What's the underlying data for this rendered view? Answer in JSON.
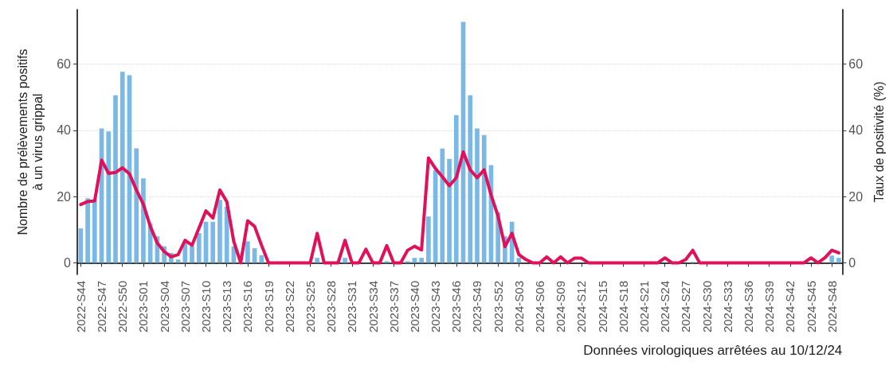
{
  "chart_data": {
    "type": "bar",
    "xlabel": "Données virologiques arrêtées au 10/12/24",
    "ylabel": "Nombre de prélèvements positifs\nà un virus grippal",
    "y2label": "Taux de positivité (%)",
    "categories": [
      "2022-S44",
      null,
      null,
      "2022-S47",
      null,
      null,
      "2022-S50",
      null,
      null,
      "2023-S01",
      null,
      null,
      "2023-S04",
      null,
      null,
      "2023-S07",
      null,
      null,
      "2023-S10",
      null,
      null,
      "2023-S13",
      null,
      null,
      "2023-S16",
      null,
      null,
      "2023-S19",
      null,
      null,
      "2023-S22",
      null,
      null,
      "2023-S25",
      null,
      null,
      "2023-S28",
      null,
      null,
      "2023-S31",
      null,
      null,
      "2023-S34",
      null,
      null,
      "2023-S37",
      null,
      null,
      "2023-S40",
      null,
      null,
      "2023-S43",
      null,
      null,
      "2023-S46",
      null,
      null,
      "2023-S49",
      null,
      null,
      "2023-S52",
      null,
      null,
      "2024-S03",
      null,
      null,
      "2024-S06",
      null,
      null,
      "2024-S09",
      null,
      null,
      "2024-S12",
      null,
      null,
      "2024-S15",
      null,
      null,
      "2024-S18",
      null,
      null,
      "2024-S21",
      null,
      null,
      "2024-S24",
      null,
      null,
      "2024-S27",
      null,
      null,
      "2024-S30",
      null,
      null,
      "2024-S33",
      null,
      null,
      "2024-S36",
      null,
      null,
      "2024-S39",
      null,
      null,
      "2024-S42",
      null,
      null,
      "2024-S45",
      null,
      null,
      "2024-S48",
      null
    ],
    "series": [
      {
        "color": "#7ab8e6",
        "values": [
          10.4,
          19.5,
          19,
          40.6,
          39.7,
          50.6,
          57.7,
          56.7,
          34.6,
          25.5,
          12,
          8,
          5,
          3,
          1,
          6,
          5,
          9,
          12.4,
          12.4,
          19,
          17,
          5,
          null,
          6.5,
          4.4,
          2.3,
          0,
          0,
          0,
          0,
          0,
          0,
          0,
          1.5,
          0,
          0,
          0,
          1.5,
          0,
          0,
          0,
          0,
          0,
          0.5,
          0,
          0,
          0.5,
          1.5,
          1.5,
          14,
          28,
          34.5,
          31.4,
          44.6,
          72.8,
          50.6,
          40.6,
          38.6,
          29.5,
          15.3,
          8,
          12.4,
          1.5,
          0,
          0,
          0,
          0,
          0,
          0,
          0,
          0,
          0,
          0,
          0,
          0,
          0,
          0,
          0,
          0,
          0,
          0,
          0,
          0,
          0,
          0,
          0,
          0,
          0.3,
          0,
          0,
          0,
          0,
          0,
          0,
          0,
          0,
          0,
          0,
          0,
          0,
          0,
          0,
          0,
          0,
          0,
          0,
          0,
          2.2,
          1.5
        ]
      },
      {
        "type": "line",
        "axis": "y2",
        "color": "#e0105a",
        "values": [
          17.6,
          18.5,
          18.7,
          31,
          27,
          27.3,
          28.7,
          26.9,
          22,
          17.7,
          11,
          6,
          3.4,
          1.8,
          2.5,
          6.8,
          5.3,
          10.5,
          15.7,
          13.5,
          22,
          18.5,
          6.5,
          0,
          12.7,
          11,
          5.3,
          0,
          0,
          0,
          0,
          0,
          0,
          0,
          8.9,
          0,
          0,
          0,
          6.8,
          0,
          0,
          4.1,
          0,
          0,
          5.2,
          0,
          0,
          3.8,
          5,
          3.9,
          31.7,
          28.5,
          26,
          23.3,
          25.7,
          33.5,
          28.1,
          25.7,
          28.1,
          20.5,
          14.1,
          4.9,
          8.9,
          2.5,
          1,
          0,
          0,
          1.8,
          0,
          1.8,
          0,
          1.4,
          1.4,
          0,
          0,
          0,
          0,
          0,
          0,
          0,
          0,
          0,
          0,
          0,
          1.5,
          0,
          0,
          1,
          3.8,
          0,
          0,
          0,
          0,
          0,
          0,
          0,
          0,
          0,
          0,
          0,
          0,
          0,
          0,
          0,
          0,
          1.5,
          0,
          1.5,
          3.8,
          3
        ]
      }
    ],
    "ylim": [
      -3.5,
      76.5
    ],
    "yticks": [
      0,
      20,
      40,
      60
    ],
    "y2lim": [
      -3.5,
      76.5
    ],
    "y2ticks": [
      0,
      20,
      40,
      60
    ],
    "grid": "y",
    "marker": "none",
    "line_style": "solid"
  }
}
